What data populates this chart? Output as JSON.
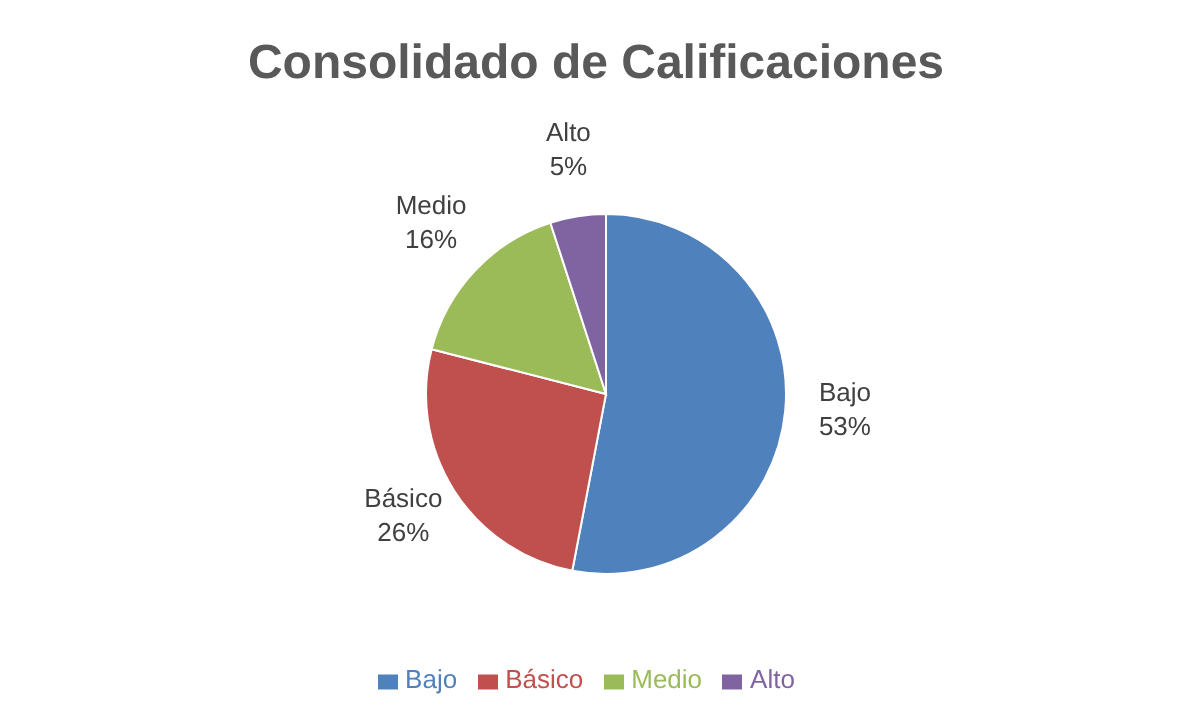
{
  "chart_data": {
    "type": "pie",
    "title": "Consolidado de Calificaciones",
    "categories": [
      "Bajo",
      "Básico",
      "Medio",
      "Alto"
    ],
    "values": [
      53,
      26,
      16,
      5
    ],
    "value_labels": [
      "53%",
      "26%",
      "16%",
      "5%"
    ],
    "colors": [
      "#4f81bd",
      "#c0504d",
      "#9bbb59",
      "#8064a2"
    ],
    "legend": "bottom"
  }
}
